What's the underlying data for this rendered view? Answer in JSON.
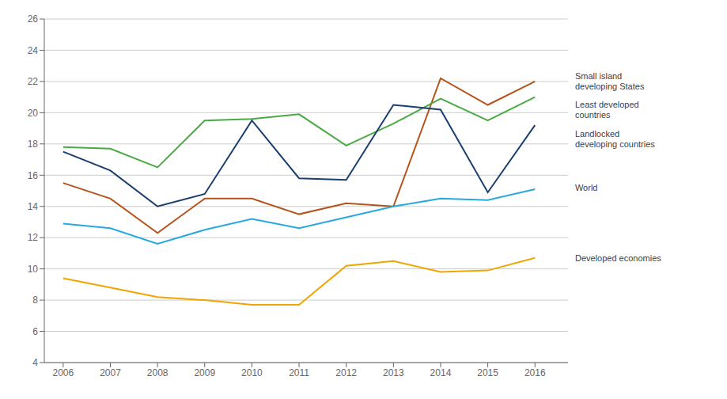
{
  "chart_data": {
    "type": "line",
    "x": [
      2006,
      2007,
      2008,
      2009,
      2010,
      2011,
      2012,
      2013,
      2014,
      2015,
      2016
    ],
    "xlim": [
      2005.6,
      2016.7
    ],
    "xticks": [
      2006,
      2007,
      2008,
      2009,
      2010,
      2011,
      2012,
      2013,
      2014,
      2015,
      2016
    ],
    "ylim": [
      4,
      26
    ],
    "yticks": [
      4,
      6,
      8,
      10,
      12,
      14,
      16,
      18,
      20,
      22,
      24,
      26
    ],
    "grid": true,
    "series": [
      {
        "name": "Small island\ndeveloping States",
        "color": "#b5541c",
        "values": [
          15.5,
          14.5,
          12.3,
          14.5,
          14.5,
          13.5,
          14.2,
          14.0,
          22.2,
          20.5,
          22.0
        ]
      },
      {
        "name": "Least developed\ncountries",
        "color": "#4aaa44",
        "values": [
          17.8,
          17.7,
          16.5,
          19.5,
          19.6,
          19.9,
          17.9,
          19.3,
          20.9,
          19.5,
          21.0
        ]
      },
      {
        "name": "Landlocked\ndeveloping countries",
        "color": "#1a3e6e",
        "values": [
          17.5,
          16.3,
          14.0,
          14.8,
          19.5,
          15.8,
          15.7,
          20.5,
          20.2,
          14.9,
          19.2
        ]
      },
      {
        "name": "World",
        "color": "#29a8e0",
        "values": [
          12.9,
          12.6,
          11.6,
          12.5,
          13.2,
          12.6,
          13.3,
          14.0,
          14.5,
          14.4,
          15.1
        ]
      },
      {
        "name": "Developed economies",
        "color": "#f0a500",
        "values": [
          9.4,
          8.8,
          8.2,
          8.0,
          7.7,
          7.7,
          10.2,
          10.5,
          9.8,
          9.9,
          10.7
        ]
      }
    ],
    "annotations": [
      {
        "text": "Small island\ndeveloping States",
        "x": 2016.85,
        "y": 22.0
      },
      {
        "text": "Least developed\ncountries",
        "x": 2016.85,
        "y": 20.2
      },
      {
        "text": "Landlocked\ndeveloping countries",
        "x": 2016.85,
        "y": 18.3
      },
      {
        "text": "World",
        "x": 2016.85,
        "y": 15.2
      },
      {
        "text": "Developed economies",
        "x": 2016.85,
        "y": 10.7
      }
    ]
  }
}
